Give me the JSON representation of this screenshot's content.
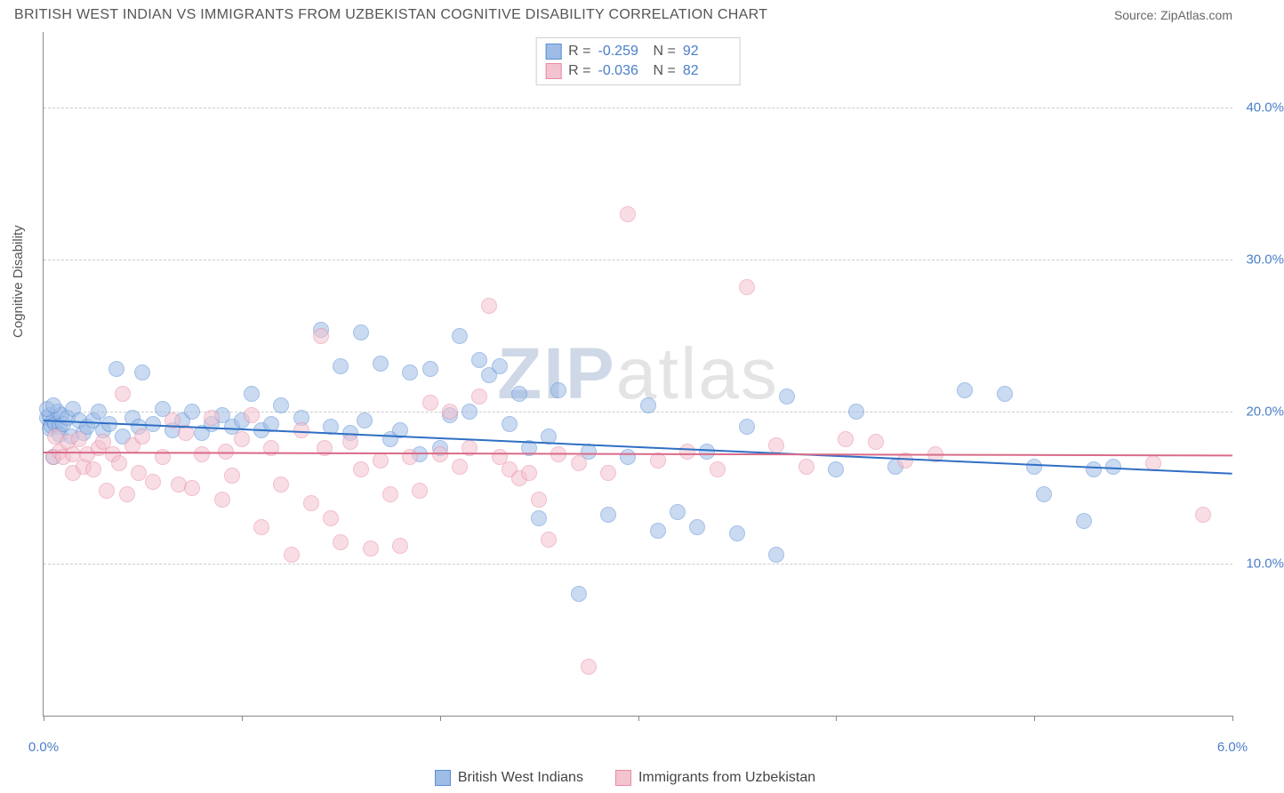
{
  "title": "BRITISH WEST INDIAN VS IMMIGRANTS FROM UZBEKISTAN COGNITIVE DISABILITY CORRELATION CHART",
  "source": "Source: ZipAtlas.com",
  "ylabel": "Cognitive Disability",
  "watermark_zip": "ZIP",
  "watermark_atlas": "atlas",
  "chart": {
    "type": "scatter",
    "xlim": [
      0,
      6
    ],
    "ylim": [
      0,
      45
    ],
    "y_ticks": [
      10,
      20,
      30,
      40
    ],
    "y_tick_labels": [
      "10.0%",
      "20.0%",
      "30.0%",
      "40.0%"
    ],
    "x_ticks": [
      0,
      1,
      2,
      3,
      4,
      5,
      6
    ],
    "x_tick_labels_shown": {
      "0": "0.0%",
      "6": "6.0%"
    },
    "background_color": "#ffffff",
    "grid_color": "#cccccc",
    "axis_color": "#888888",
    "point_radius": 9,
    "point_opacity": 0.55,
    "series": [
      {
        "key": "bwi",
        "name": "British West Indians",
        "fill": "#9dbce6",
        "stroke": "#5b8fd6",
        "trend_color": "#2f6fc4",
        "trend": {
          "x1": 0,
          "y1": 19.5,
          "x2": 6,
          "y2": 16.0
        },
        "R": "-0.259",
        "N": "92",
        "points": [
          [
            0.02,
            19.6
          ],
          [
            0.03,
            18.9
          ],
          [
            0.03,
            19.8
          ],
          [
            0.04,
            19.1
          ],
          [
            0.05,
            17.0
          ],
          [
            0.05,
            19.4
          ],
          [
            0.06,
            19.2
          ],
          [
            0.07,
            20.0
          ],
          [
            0.08,
            19.0
          ],
          [
            0.08,
            18.5
          ],
          [
            0.09,
            19.8
          ],
          [
            0.1,
            19.2
          ],
          [
            0.12,
            19.6
          ],
          [
            0.14,
            18.4
          ],
          [
            0.15,
            20.2
          ],
          [
            0.18,
            19.4
          ],
          [
            0.2,
            18.6
          ],
          [
            0.22,
            19.0
          ],
          [
            0.25,
            19.4
          ],
          [
            0.28,
            20.0
          ],
          [
            0.3,
            18.8
          ],
          [
            0.33,
            19.2
          ],
          [
            0.37,
            22.8
          ],
          [
            0.4,
            18.4
          ],
          [
            0.45,
            19.6
          ],
          [
            0.48,
            19.0
          ],
          [
            0.5,
            22.6
          ],
          [
            0.55,
            19.2
          ],
          [
            0.6,
            20.2
          ],
          [
            0.65,
            18.8
          ],
          [
            0.7,
            19.4
          ],
          [
            0.75,
            20.0
          ],
          [
            0.8,
            18.6
          ],
          [
            0.85,
            19.2
          ],
          [
            0.9,
            19.8
          ],
          [
            0.95,
            19.0
          ],
          [
            1.0,
            19.4
          ],
          [
            1.05,
            21.2
          ],
          [
            1.1,
            18.8
          ],
          [
            1.15,
            19.2
          ],
          [
            1.2,
            20.4
          ],
          [
            1.3,
            19.6
          ],
          [
            1.4,
            25.4
          ],
          [
            1.45,
            19.0
          ],
          [
            1.5,
            23.0
          ],
          [
            1.55,
            18.6
          ],
          [
            1.6,
            25.2
          ],
          [
            1.62,
            19.4
          ],
          [
            1.7,
            23.2
          ],
          [
            1.75,
            18.2
          ],
          [
            1.8,
            18.8
          ],
          [
            1.85,
            22.6
          ],
          [
            1.9,
            17.2
          ],
          [
            1.95,
            22.8
          ],
          [
            2.0,
            17.6
          ],
          [
            2.05,
            19.8
          ],
          [
            2.1,
            25.0
          ],
          [
            2.15,
            20.0
          ],
          [
            2.2,
            23.4
          ],
          [
            2.25,
            22.4
          ],
          [
            2.3,
            23.0
          ],
          [
            2.35,
            19.2
          ],
          [
            2.4,
            21.2
          ],
          [
            2.45,
            17.6
          ],
          [
            2.5,
            13.0
          ],
          [
            2.55,
            18.4
          ],
          [
            2.6,
            21.4
          ],
          [
            2.7,
            8.0
          ],
          [
            2.75,
            17.4
          ],
          [
            2.85,
            13.2
          ],
          [
            2.95,
            17.0
          ],
          [
            3.05,
            20.4
          ],
          [
            3.1,
            12.2
          ],
          [
            3.2,
            13.4
          ],
          [
            3.3,
            12.4
          ],
          [
            3.35,
            17.4
          ],
          [
            3.5,
            12.0
          ],
          [
            3.55,
            19.0
          ],
          [
            3.7,
            10.6
          ],
          [
            3.75,
            21.0
          ],
          [
            4.0,
            16.2
          ],
          [
            4.1,
            20.0
          ],
          [
            4.3,
            16.4
          ],
          [
            4.65,
            21.4
          ],
          [
            4.85,
            21.2
          ],
          [
            5.0,
            16.4
          ],
          [
            5.05,
            14.6
          ],
          [
            5.25,
            12.8
          ],
          [
            5.3,
            16.2
          ],
          [
            5.4,
            16.4
          ],
          [
            0.02,
            20.2
          ],
          [
            0.05,
            20.4
          ]
        ]
      },
      {
        "key": "uzb",
        "name": "Immigrants from Uzbekistan",
        "fill": "#f3c3cf",
        "stroke": "#e88aa3",
        "trend_color": "#d96b88",
        "trend": {
          "x1": 0,
          "y1": 17.4,
          "x2": 6,
          "y2": 17.2
        },
        "R": "-0.036",
        "N": "82",
        "points": [
          [
            0.05,
            17.0
          ],
          [
            0.08,
            17.4
          ],
          [
            0.1,
            17.0
          ],
          [
            0.12,
            18.0
          ],
          [
            0.15,
            17.2
          ],
          [
            0.15,
            16.0
          ],
          [
            0.18,
            18.2
          ],
          [
            0.2,
            16.4
          ],
          [
            0.22,
            17.2
          ],
          [
            0.25,
            16.2
          ],
          [
            0.28,
            17.6
          ],
          [
            0.3,
            18.0
          ],
          [
            0.32,
            14.8
          ],
          [
            0.35,
            17.2
          ],
          [
            0.38,
            16.6
          ],
          [
            0.4,
            21.2
          ],
          [
            0.42,
            14.6
          ],
          [
            0.45,
            17.8
          ],
          [
            0.48,
            16.0
          ],
          [
            0.5,
            18.4
          ],
          [
            0.55,
            15.4
          ],
          [
            0.6,
            17.0
          ],
          [
            0.65,
            19.4
          ],
          [
            0.68,
            15.2
          ],
          [
            0.72,
            18.6
          ],
          [
            0.75,
            15.0
          ],
          [
            0.8,
            17.2
          ],
          [
            0.85,
            19.6
          ],
          [
            0.9,
            14.2
          ],
          [
            0.92,
            17.4
          ],
          [
            0.95,
            15.8
          ],
          [
            1.0,
            18.2
          ],
          [
            1.05,
            19.8
          ],
          [
            1.1,
            12.4
          ],
          [
            1.15,
            17.6
          ],
          [
            1.2,
            15.2
          ],
          [
            1.25,
            10.6
          ],
          [
            1.3,
            18.8
          ],
          [
            1.35,
            14.0
          ],
          [
            1.4,
            25.0
          ],
          [
            1.42,
            17.6
          ],
          [
            1.45,
            13.0
          ],
          [
            1.5,
            11.4
          ],
          [
            1.55,
            18.0
          ],
          [
            1.6,
            16.2
          ],
          [
            1.65,
            11.0
          ],
          [
            1.7,
            16.8
          ],
          [
            1.75,
            14.6
          ],
          [
            1.8,
            11.2
          ],
          [
            1.85,
            17.0
          ],
          [
            1.9,
            14.8
          ],
          [
            1.95,
            20.6
          ],
          [
            2.0,
            17.2
          ],
          [
            2.05,
            20.0
          ],
          [
            2.1,
            16.4
          ],
          [
            2.15,
            17.6
          ],
          [
            2.2,
            21.0
          ],
          [
            2.25,
            27.0
          ],
          [
            2.3,
            17.0
          ],
          [
            2.35,
            16.2
          ],
          [
            2.4,
            15.6
          ],
          [
            2.45,
            16.0
          ],
          [
            2.5,
            14.2
          ],
          [
            2.55,
            11.6
          ],
          [
            2.6,
            17.2
          ],
          [
            2.7,
            16.6
          ],
          [
            2.75,
            3.2
          ],
          [
            2.85,
            16.0
          ],
          [
            2.95,
            33.0
          ],
          [
            3.1,
            16.8
          ],
          [
            3.25,
            17.4
          ],
          [
            3.4,
            16.2
          ],
          [
            3.55,
            28.2
          ],
          [
            3.7,
            17.8
          ],
          [
            3.85,
            16.4
          ],
          [
            4.05,
            18.2
          ],
          [
            4.2,
            18.0
          ],
          [
            4.35,
            16.8
          ],
          [
            4.5,
            17.2
          ],
          [
            5.6,
            16.6
          ],
          [
            5.85,
            13.2
          ],
          [
            0.06,
            18.4
          ]
        ]
      }
    ]
  },
  "stats_labels": {
    "R": "R =",
    "N": "N ="
  },
  "legend": {
    "bwi": "British West Indians",
    "uzb": "Immigrants from Uzbekistan"
  }
}
